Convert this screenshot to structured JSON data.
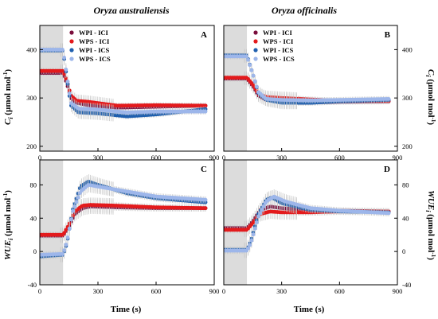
{
  "titles": {
    "left": "Oryza australiensis",
    "right": "Oryza officinalis"
  },
  "axis": {
    "x_title": "Time (s)",
    "ci_title_main": "C",
    "ci_title_sub": "i",
    "ci_title_unit_pre": " (µmol mol",
    "ci_title_unit_sup": "-1",
    "ci_title_unit_post": ")",
    "wue_title_main": "WUE",
    "wue_title_sub": "i",
    "wue_title_unit_pre": " (µmol mol",
    "wue_title_unit_sup": "-1",
    "wue_title_unit_post": ")"
  },
  "legend": [
    "WPI - ICI",
    "WPS - ICI",
    "WPI - ICS",
    "WPS - ICS"
  ],
  "colors": {
    "WPI - ICI": "#7a0d3c",
    "WPS - ICI": "#e31a1c",
    "WPI - ICS": "#1f5fae",
    "WPS - ICS": "#9db6ea",
    "shade": "#dcdcdc",
    "error": "#c8c8c8"
  },
  "chart_data": [
    {
      "type": "scatter",
      "panel": "A",
      "ylabel": "Ci (µmol mol-1)",
      "xlim": [
        0,
        900
      ],
      "ylim": [
        190,
        450
      ],
      "xticks": [
        0,
        300,
        600,
        900
      ],
      "yticks": [
        200,
        300,
        400
      ],
      "shaded_x": [
        0,
        120
      ],
      "series": [
        {
          "name": "WPI - ICI",
          "points": [
            [
              0,
              352
            ],
            [
              120,
              352
            ],
            [
              140,
              330
            ],
            [
              160,
              300
            ],
            [
              190,
              290
            ],
            [
              250,
              285
            ],
            [
              400,
              280
            ],
            [
              600,
              282
            ],
            [
              860,
              284
            ]
          ]
        },
        {
          "name": "WPS - ICI",
          "points": [
            [
              0,
              356
            ],
            [
              120,
              356
            ],
            [
              140,
              335
            ],
            [
              160,
              305
            ],
            [
              190,
              294
            ],
            [
              250,
              292
            ],
            [
              400,
              284
            ],
            [
              600,
              285
            ],
            [
              860,
              284
            ]
          ]
        },
        {
          "name": "WPI - ICS",
          "points": [
            [
              0,
              398
            ],
            [
              120,
              398
            ],
            [
              140,
              340
            ],
            [
              160,
              285
            ],
            [
              200,
              270
            ],
            [
              300,
              268
            ],
            [
              450,
              262
            ],
            [
              600,
              266
            ],
            [
              860,
              277
            ]
          ]
        },
        {
          "name": "WPS - ICS",
          "points": [
            [
              0,
              400
            ],
            [
              120,
              400
            ],
            [
              140,
              345
            ],
            [
              160,
              290
            ],
            [
              200,
              278
            ],
            [
              300,
              276
            ],
            [
              450,
              270
            ],
            [
              600,
              272
            ],
            [
              860,
              272
            ]
          ]
        }
      ]
    },
    {
      "type": "scatter",
      "panel": "B",
      "ylabel": "Ci (µmol mol-1)",
      "xlim": [
        0,
        900
      ],
      "ylim": [
        190,
        450
      ],
      "xticks": [
        0,
        300,
        600,
        900
      ],
      "yticks": [
        200,
        300,
        400
      ],
      "shaded_x": [
        0,
        120
      ],
      "series": [
        {
          "name": "WPI - ICI",
          "points": [
            [
              0,
              340
            ],
            [
              120,
              340
            ],
            [
              150,
              325
            ],
            [
              180,
              305
            ],
            [
              220,
              296
            ],
            [
              300,
              292
            ],
            [
              400,
              290
            ],
            [
              600,
              292
            ],
            [
              860,
              293
            ]
          ]
        },
        {
          "name": "WPS - ICI",
          "points": [
            [
              0,
              342
            ],
            [
              120,
              342
            ],
            [
              150,
              328
            ],
            [
              180,
              308
            ],
            [
              220,
              302
            ],
            [
              300,
              300
            ],
            [
              400,
              298
            ],
            [
              600,
              294
            ],
            [
              860,
              294
            ]
          ]
        },
        {
          "name": "WPI - ICS",
          "points": [
            [
              0,
              388
            ],
            [
              120,
              388
            ],
            [
              150,
              350
            ],
            [
              180,
              310
            ],
            [
              220,
              296
            ],
            [
              300,
              290
            ],
            [
              450,
              290
            ],
            [
              600,
              293
            ],
            [
              860,
              296
            ]
          ]
        },
        {
          "name": "WPS - ICS",
          "points": [
            [
              0,
              386
            ],
            [
              120,
              386
            ],
            [
              150,
              350
            ],
            [
              180,
              312
            ],
            [
              220,
              298
            ],
            [
              300,
              296
            ],
            [
              450,
              295
            ],
            [
              600,
              296
            ],
            [
              860,
              298
            ]
          ]
        }
      ]
    },
    {
      "type": "scatter",
      "panel": "C",
      "ylabel": "WUEi (µmol mol-1)",
      "xlim": [
        0,
        900
      ],
      "ylim": [
        -40,
        110
      ],
      "xticks": [
        0,
        300,
        600,
        900
      ],
      "yticks": [
        -40,
        0,
        40,
        80
      ],
      "shaded_x": [
        0,
        120
      ],
      "series": [
        {
          "name": "WPI - ICI",
          "points": [
            [
              0,
              19
            ],
            [
              120,
              19
            ],
            [
              150,
              30
            ],
            [
              180,
              45
            ],
            [
              220,
              52
            ],
            [
              260,
              54
            ],
            [
              400,
              53
            ],
            [
              600,
              52
            ],
            [
              860,
              52
            ]
          ]
        },
        {
          "name": "WPS - ICI",
          "points": [
            [
              0,
              20
            ],
            [
              120,
              20
            ],
            [
              150,
              32
            ],
            [
              180,
              48
            ],
            [
              220,
              55
            ],
            [
              260,
              56
            ],
            [
              400,
              55
            ],
            [
              600,
              53
            ],
            [
              860,
              52
            ]
          ]
        },
        {
          "name": "WPI - ICS",
          "points": [
            [
              0,
              -6
            ],
            [
              120,
              -4
            ],
            [
              140,
              10
            ],
            [
              170,
              50
            ],
            [
              210,
              78
            ],
            [
              250,
              84
            ],
            [
              300,
              80
            ],
            [
              450,
              70
            ],
            [
              600,
              64
            ],
            [
              860,
              59
            ]
          ]
        },
        {
          "name": "WPS - ICS",
          "points": [
            [
              0,
              -4
            ],
            [
              120,
              -3
            ],
            [
              140,
              12
            ],
            [
              170,
              48
            ],
            [
              210,
              72
            ],
            [
              250,
              80
            ],
            [
              300,
              78
            ],
            [
              450,
              72
            ],
            [
              600,
              66
            ],
            [
              860,
              62
            ]
          ]
        }
      ]
    },
    {
      "type": "scatter",
      "panel": "D",
      "ylabel": "WUEi (µmol mol-1)",
      "xlim": [
        0,
        900
      ],
      "ylim": [
        -40,
        110
      ],
      "xticks": [
        0,
        300,
        600,
        900
      ],
      "yticks": [
        -40,
        0,
        40,
        80
      ],
      "shaded_x": [
        0,
        120
      ],
      "series": [
        {
          "name": "WPI - ICI",
          "points": [
            [
              0,
              28
            ],
            [
              120,
              28
            ],
            [
              150,
              36
            ],
            [
              190,
              50
            ],
            [
              240,
              54
            ],
            [
              300,
              52
            ],
            [
              450,
              50
            ],
            [
              600,
              49
            ],
            [
              860,
              48
            ]
          ]
        },
        {
          "name": "WPS - ICI",
          "points": [
            [
              0,
              26
            ],
            [
              120,
              26
            ],
            [
              150,
              34
            ],
            [
              190,
              45
            ],
            [
              240,
              48
            ],
            [
              300,
              47
            ],
            [
              450,
              47
            ],
            [
              600,
              48
            ],
            [
              860,
              48
            ]
          ]
        },
        {
          "name": "WPI - ICS",
          "points": [
            [
              0,
              2
            ],
            [
              120,
              2
            ],
            [
              140,
              12
            ],
            [
              180,
              45
            ],
            [
              220,
              62
            ],
            [
              250,
              65
            ],
            [
              300,
              58
            ],
            [
              450,
              50
            ],
            [
              600,
              48
            ],
            [
              860,
              47
            ]
          ]
        },
        {
          "name": "WPS - ICS",
          "points": [
            [
              0,
              1
            ],
            [
              120,
              1
            ],
            [
              140,
              10
            ],
            [
              180,
              42
            ],
            [
              220,
              60
            ],
            [
              260,
              66
            ],
            [
              320,
              60
            ],
            [
              450,
              52
            ],
            [
              600,
              49
            ],
            [
              860,
              46
            ]
          ]
        }
      ]
    }
  ]
}
